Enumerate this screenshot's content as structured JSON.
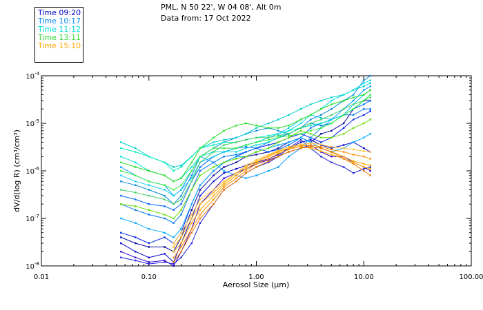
{
  "header": {
    "line1": "PML, N 50 22', W 04 08', Alt 0m",
    "line2": "Data from: 17 Oct 2022"
  },
  "chart_data": {
    "type": "line",
    "title": "PML, N 50 22', W 04 08', Alt 0m",
    "subtitle": "Data from: 17 Oct 2022",
    "xlabel": "Aerosol Size (μm)",
    "ylabel": "dV/d(log R) (cm³/cm³)",
    "xscale": "log",
    "yscale": "log",
    "xlim": [
      0.01,
      100
    ],
    "ylim": [
      1e-08,
      0.0001
    ],
    "x_ticks": [
      {
        "value": 0.01,
        "label": "0.01"
      },
      {
        "value": 0.1,
        "label": "0.10"
      },
      {
        "value": 1,
        "label": "1.00"
      },
      {
        "value": 10,
        "label": "10.00"
      },
      {
        "value": 100,
        "label": "100.00"
      }
    ],
    "y_ticks": [
      {
        "value": 1e-08,
        "base": "10",
        "exp": "-8"
      },
      {
        "value": 1e-07,
        "base": "10",
        "exp": "-7"
      },
      {
        "value": 1e-06,
        "base": "10",
        "exp": "-6"
      },
      {
        "value": 1e-05,
        "base": "10",
        "exp": "-5"
      },
      {
        "value": 0.0001,
        "base": "10",
        "exp": "-4"
      }
    ],
    "legend_position": "top-left",
    "legend": [
      {
        "label": "Time 09:20",
        "color": "#0000cc"
      },
      {
        "label": "Time 10:17",
        "color": "#0088ff"
      },
      {
        "label": "Time 11:12",
        "color": "#00dddd"
      },
      {
        "label": "Time 13:11",
        "color": "#33dd33"
      },
      {
        "label": "Time 15:10",
        "color": "#ffa500"
      }
    ],
    "x": [
      0.055,
      0.075,
      0.1,
      0.14,
      0.17,
      0.2,
      0.25,
      0.3,
      0.4,
      0.5,
      0.65,
      0.8,
      1.0,
      1.3,
      1.6,
      2.0,
      2.6,
      3.2,
      4.0,
      5.0,
      6.5,
      8.0,
      10.0,
      11.5
    ],
    "series": [
      {
        "name": "09:20 a",
        "color": "#000099",
        "values": [
          4e-08,
          3e-08,
          2.5e-08,
          2.5e-08,
          2e-08,
          4e-08,
          1.5e-07,
          4e-07,
          8e-07,
          1.2e-06,
          1.5e-06,
          2e-06,
          2.2e-06,
          2.5e-06,
          3e-06,
          4e-06,
          5e-06,
          4e-06,
          6e-06,
          7e-06,
          1e-05,
          2e-05,
          3e-05,
          3e-05
        ]
      },
      {
        "name": "09:20 b",
        "color": "#0000cc",
        "values": [
          3e-08,
          2e-08,
          1.5e-08,
          1.8e-08,
          1.2e-08,
          3e-08,
          1e-07,
          3e-07,
          6e-07,
          9e-07,
          1.1e-06,
          1.3e-06,
          1.5e-06,
          1.8e-06,
          2.2e-06,
          3e-06,
          4e-06,
          4.5e-06,
          3.5e-06,
          3e-06,
          3.5e-06,
          4e-06,
          3e-06,
          2.5e-06
        ]
      },
      {
        "name": "09:20 c",
        "color": "#3300cc",
        "values": [
          2e-08,
          1.5e-08,
          1.2e-08,
          1.3e-08,
          1e-08,
          2e-08,
          6e-08,
          2e-07,
          4e-07,
          7e-07,
          9e-07,
          1.1e-06,
          1.4e-06,
          1.7e-06,
          2e-06,
          2.5e-06,
          3e-06,
          3.5e-06,
          2.5e-06,
          2e-06,
          2e-06,
          1.5e-06,
          1.2e-06,
          1e-06
        ]
      },
      {
        "name": "09:20 d",
        "color": "#0022ee",
        "values": [
          5e-08,
          4e-08,
          3e-08,
          4e-08,
          3e-08,
          5e-08,
          2e-07,
          5e-07,
          1e-06,
          1.5e-06,
          2e-06,
          2.5e-06,
          3e-06,
          3.5e-06,
          4e-06,
          5e-06,
          6e-06,
          5e-06,
          4e-06,
          5e-06,
          8e-06,
          1.2e-05,
          1.5e-05,
          1.8e-05
        ]
      },
      {
        "name": "09:20 e",
        "color": "#2222dd",
        "values": [
          1.5e-08,
          1.3e-08,
          1.1e-08,
          1.2e-08,
          1.1e-08,
          1.5e-08,
          3e-08,
          8e-08,
          2e-07,
          4e-07,
          6e-07,
          9e-07,
          1.2e-06,
          1.5e-06,
          2e-06,
          3e-06,
          4.5e-06,
          3e-06,
          2e-06,
          1.5e-06,
          1.2e-06,
          9e-07,
          1.1e-06,
          1.2e-06
        ]
      },
      {
        "name": "10:17 a",
        "color": "#0066ff",
        "values": [
          3e-07,
          2.5e-07,
          2e-07,
          1.8e-07,
          1.5e-07,
          2e-07,
          6e-07,
          1.2e-06,
          2e-06,
          2.5e-06,
          3e-06,
          3.2e-06,
          3e-06,
          2.5e-06,
          2.8e-06,
          3.5e-06,
          5e-06,
          8e-06,
          1e-05,
          1.2e-05,
          1.5e-05,
          2e-05,
          2.5e-05,
          3e-05
        ]
      },
      {
        "name": "10:17 b",
        "color": "#0099ff",
        "values": [
          1.2e-06,
          8e-07,
          6e-07,
          5e-07,
          3e-07,
          4e-07,
          1e-06,
          2e-06,
          1.5e-06,
          1e-06,
          8e-07,
          7e-07,
          8e-07,
          1e-06,
          1.2e-06,
          2e-06,
          3e-06,
          5e-06,
          8e-06,
          1.2e-05,
          2e-05,
          3e-05,
          5e-05,
          6e-05
        ]
      },
      {
        "name": "10:17 c",
        "color": "#0077ee",
        "values": [
          2e-07,
          1.5e-07,
          1.2e-07,
          1e-07,
          8e-08,
          1.2e-07,
          4e-07,
          1e-06,
          1.5e-06,
          2e-06,
          2.2e-06,
          2.5e-06,
          3e-06,
          4e-06,
          5e-06,
          6e-06,
          8e-06,
          1e-05,
          9e-06,
          1e-05,
          1.5e-05,
          1.5e-05,
          2e-05,
          2e-05
        ]
      },
      {
        "name": "10:17 d",
        "color": "#00aaff",
        "values": [
          1e-07,
          8e-08,
          6e-08,
          5e-08,
          4e-08,
          6e-08,
          2e-07,
          5e-07,
          1e-06,
          1.5e-06,
          2e-06,
          2e-06,
          2.5e-06,
          3e-06,
          3.5e-06,
          4e-06,
          5e-06,
          4e-06,
          3e-06,
          2.5e-06,
          3e-06,
          4e-06,
          5e-06,
          6e-06
        ]
      },
      {
        "name": "10:17 e",
        "color": "#0088dd",
        "values": [
          6e-07,
          5e-07,
          4e-07,
          3e-07,
          2e-07,
          3e-07,
          8e-07,
          2e-06,
          3e-06,
          4e-06,
          5e-06,
          6e-06,
          7e-06,
          8e-06,
          7e-06,
          6e-06,
          8e-06,
          1.2e-05,
          1.5e-05,
          2e-05,
          3e-05,
          4e-05,
          8e-05,
          0.0001
        ]
      },
      {
        "name": "11:12 a",
        "color": "#00cccc",
        "values": [
          4e-06,
          3e-06,
          2e-06,
          1.5e-06,
          1.2e-06,
          1.3e-06,
          2e-06,
          3e-06,
          4e-06,
          4.5e-06,
          5e-06,
          6e-06,
          8e-06,
          1e-05,
          1.2e-05,
          1.5e-05,
          2e-05,
          2.5e-05,
          3e-05,
          3.5e-05,
          4e-05,
          5e-05,
          6e-05,
          7e-05
        ]
      },
      {
        "name": "11:12 b",
        "color": "#00dddd",
        "values": [
          2e-06,
          1.5e-06,
          1e-06,
          8e-07,
          6e-07,
          7e-07,
          1.2e-06,
          2e-06,
          2.5e-06,
          2.5e-06,
          2.5e-06,
          3e-06,
          3.5e-06,
          4e-06,
          5e-06,
          7e-06,
          1e-05,
          1.5e-05,
          2e-05,
          3e-05,
          4e-05,
          5e-05,
          7e-05,
          8e-05
        ]
      },
      {
        "name": "11:12 c",
        "color": "#00eebb",
        "values": [
          3e-06,
          2.5e-06,
          2e-06,
          1.5e-06,
          1e-06,
          1.2e-06,
          2e-06,
          3e-06,
          3.5e-06,
          4e-06,
          4e-06,
          4.5e-06,
          5e-06,
          5.5e-06,
          6e-06,
          7e-06,
          8e-06,
          9e-06,
          1e-05,
          1.2e-05,
          1.5e-05,
          2e-05,
          3e-05,
          4e-05
        ]
      },
      {
        "name": "11:12 d",
        "color": "#11ccee",
        "values": [
          8e-07,
          6e-07,
          5e-07,
          4e-07,
          3e-07,
          4e-07,
          7e-07,
          1.5e-06,
          2e-06,
          2.5e-06,
          3e-06,
          3.5e-06,
          4e-06,
          5e-06,
          6e-06,
          8e-06,
          1.2e-05,
          1.5e-05,
          1.3e-05,
          1.2e-05,
          1.5e-05,
          2.5e-05,
          4e-05,
          5e-05
        ]
      },
      {
        "name": "13:11 a",
        "color": "#22dd22",
        "values": [
          1.5e-06,
          1.2e-06,
          1e-06,
          8e-07,
          6e-07,
          7e-07,
          1.5e-06,
          3e-06,
          5e-06,
          7e-06,
          9e-06,
          1e-05,
          9e-06,
          8e-06,
          8e-06,
          9e-06,
          1.2e-05,
          1.5e-05,
          2e-05,
          2.5e-05,
          3e-05,
          3.5e-05,
          4e-05,
          5e-05
        ]
      },
      {
        "name": "13:11 b",
        "color": "#33ee44",
        "values": [
          1e-06,
          8e-07,
          6e-07,
          5e-07,
          4e-07,
          5e-07,
          1e-06,
          2e-06,
          3e-06,
          3e-06,
          3e-06,
          3.5e-06,
          4e-06,
          4.5e-06,
          5e-06,
          5.5e-06,
          6e-06,
          7e-06,
          8e-06,
          1e-05,
          1.5e-05,
          2e-05,
          3e-05,
          4e-05
        ]
      },
      {
        "name": "13:11 c",
        "color": "#66dd00",
        "values": [
          2e-07,
          1.8e-07,
          1.5e-07,
          1.2e-07,
          1e-07,
          1.5e-07,
          4e-07,
          8e-07,
          1.2e-06,
          1.5e-06,
          1.8e-06,
          2e-06,
          2.5e-06,
          3e-06,
          4e-06,
          5e-06,
          7e-06,
          6e-06,
          5e-06,
          5e-06,
          6e-06,
          8e-06,
          1e-05,
          1.2e-05
        ]
      },
      {
        "name": "13:11 d",
        "color": "#44cc66",
        "values": [
          4e-07,
          3.5e-07,
          3e-07,
          2.5e-07,
          2e-07,
          2.5e-07,
          6e-07,
          1.5e-06,
          2.5e-06,
          3.5e-06,
          4e-06,
          4.5e-06,
          5e-06,
          5e-06,
          5.5e-06,
          6e-06,
          8e-06,
          1e-05,
          1.2e-05,
          1.5e-05,
          2e-05,
          2.5e-05,
          3e-05,
          3.5e-05
        ]
      },
      {
        "name": "15:10 a",
        "color": "#ffa500",
        "values": [
          null,
          null,
          null,
          null,
          2e-08,
          3e-08,
          8e-08,
          1.5e-07,
          3e-07,
          5e-07,
          8e-07,
          1.1e-06,
          1.5e-06,
          2e-06,
          2.5e-06,
          3e-06,
          3.5e-06,
          3.3e-06,
          3e-06,
          2.5e-06,
          2e-06,
          1.6e-06,
          1.4e-06,
          1.3e-06
        ]
      },
      {
        "name": "15:10 b",
        "color": "#ff8c00",
        "values": [
          null,
          null,
          null,
          null,
          1.5e-08,
          2.5e-08,
          6e-08,
          1.2e-07,
          2.5e-07,
          4.5e-07,
          7e-07,
          1e-06,
          1.4e-06,
          1.8e-06,
          2.3e-06,
          2.8e-06,
          3.3e-06,
          3.5e-06,
          3.2e-06,
          2.8e-06,
          2.5e-06,
          2.2e-06,
          2e-06,
          1.8e-06
        ]
      },
      {
        "name": "15:10 c",
        "color": "#ffb000",
        "values": [
          null,
          null,
          null,
          null,
          2.5e-08,
          4e-08,
          1e-07,
          2e-07,
          3.5e-07,
          5.5e-07,
          9e-07,
          1.2e-06,
          1.6e-06,
          2.1e-06,
          2.6e-06,
          3e-06,
          3.2e-06,
          3e-06,
          2.6e-06,
          2.2e-06,
          1.8e-06,
          1.5e-06,
          1.2e-06,
          1.1e-06
        ]
      },
      {
        "name": "15:10 d",
        "color": "#ee7700",
        "values": [
          null,
          null,
          null,
          null,
          1.2e-08,
          2e-08,
          5e-08,
          1e-07,
          2e-07,
          4e-07,
          6e-07,
          9e-07,
          1.2e-06,
          1.6e-06,
          2e-06,
          2.5e-06,
          3e-06,
          3.2e-06,
          3e-06,
          2.5e-06,
          1.8e-06,
          1.4e-06,
          1e-06,
          8e-07
        ]
      },
      {
        "name": "15:10 e",
        "color": "#ffc040",
        "values": [
          null,
          null,
          null,
          null,
          3e-08,
          5e-08,
          1.2e-07,
          2.5e-07,
          4e-07,
          6e-07,
          9e-07,
          1.3e-06,
          1.7e-06,
          2.2e-06,
          2.7e-06,
          3.2e-06,
          3.6e-06,
          3.8e-06,
          3.6e-06,
          3.2e-06,
          3e-06,
          2.8e-06,
          2.6e-06,
          2.5e-06
        ]
      }
    ]
  }
}
